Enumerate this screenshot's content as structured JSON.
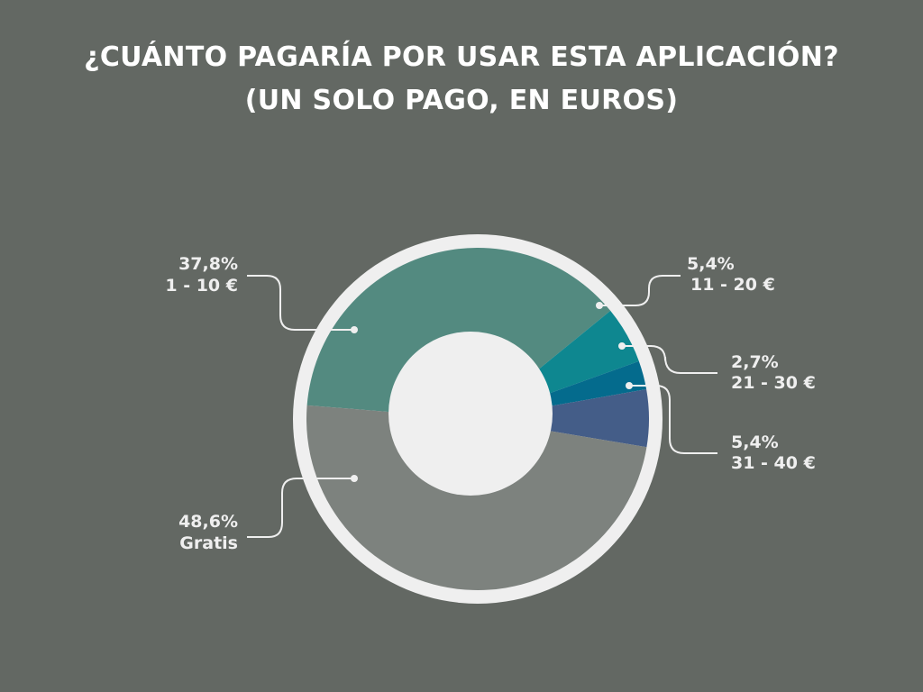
{
  "title": {
    "line1": "¿CUÁNTO PAGARÍA POR USAR ESTA APLICACIÓN?",
    "line2": "(UN SOLO PAGO, EN EUROS)"
  },
  "chart_data": {
    "type": "pie",
    "title": "¿CUÁNTO PAGARÍA POR USAR ESTA APLICACIÓN? (UN SOLO PAGO, EN EUROS)",
    "donut": true,
    "slices": [
      {
        "category": "1 - 10 €",
        "value": 37.8,
        "label": "37,8%",
        "color": "#538a80"
      },
      {
        "category": "11 - 20 €",
        "value": 5.4,
        "label": "5,4%",
        "color": "#0e8790"
      },
      {
        "category": "21 - 30 €",
        "value": 2.7,
        "label": "2,7%",
        "color": "#046b8d"
      },
      {
        "category": "31 - 40 €",
        "value": 5.4,
        "label": "5,4%",
        "color": "#445d88"
      },
      {
        "category": "Gratis",
        "value": 48.6,
        "label": "48,6%",
        "color": "#7d827e"
      }
    ]
  },
  "colors": {
    "background": "#636863",
    "ring": "#efefef",
    "hole": "#efefef",
    "text": "#ffffff"
  }
}
